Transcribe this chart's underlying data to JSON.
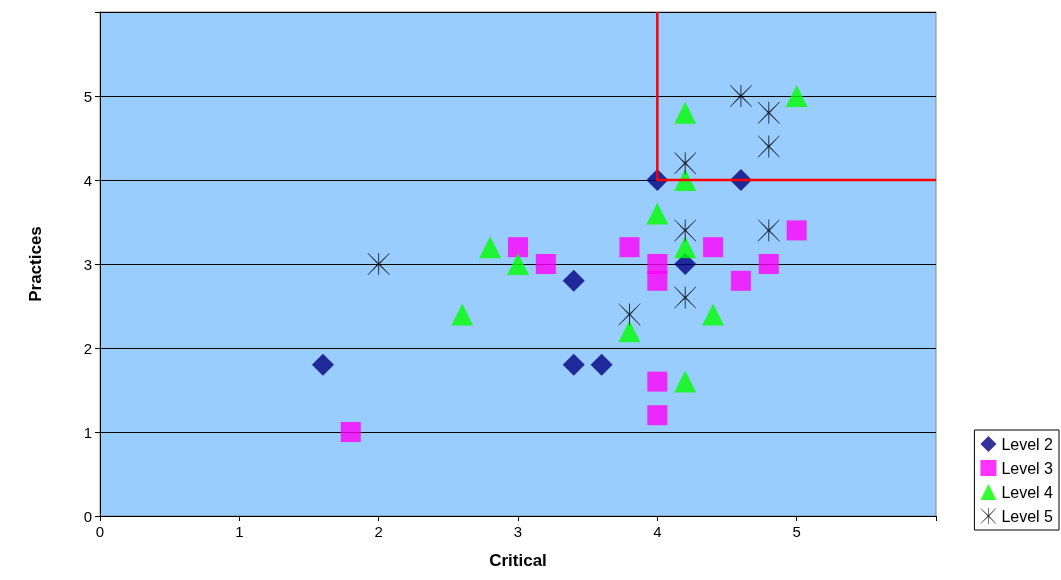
{
  "chart_data": {
    "type": "scatter",
    "xlabel": "Critical",
    "ylabel": "Practices",
    "xlim": [
      0,
      6
    ],
    "xticks": [
      0,
      1,
      2,
      3,
      4,
      5,
      {
        "value": 6,
        "label": null
      }
    ],
    "ylim": [
      0,
      6
    ],
    "yticks": [
      0,
      1,
      2,
      3,
      4,
      5,
      {
        "value": 6,
        "label": null
      }
    ],
    "grid": "y",
    "legend": "bottom right",
    "series": [
      {
        "name": "Level 2",
        "color": "#000080",
        "marker": "diamond",
        "x": [
          1.6,
          3.4,
          3.4,
          3.6,
          4,
          4.2,
          4.6
        ],
        "values": [
          1.8,
          2.8,
          1.8,
          1.8,
          4,
          3,
          4
        ]
      },
      {
        "name": "Level 3",
        "color": "#ff00ff",
        "marker": "square",
        "x": [
          1.8,
          3,
          3.2,
          3.8,
          4,
          4,
          4,
          4,
          4.4,
          4.6,
          4.8,
          5
        ],
        "values": [
          1,
          3.2,
          3,
          3.2,
          3,
          2.8,
          1.6,
          1.2,
          3.2,
          2.8,
          3,
          3.4
        ]
      },
      {
        "name": "Level 4",
        "color": "#00ff00",
        "marker": "triangle",
        "x": [
          2.6,
          2.8,
          3,
          3.8,
          4,
          4.2,
          4.2,
          4.2,
          4.2,
          4.4,
          5
        ],
        "values": [
          2.4,
          3.2,
          3,
          2.2,
          3.6,
          4.8,
          4,
          3.2,
          1.6,
          2.4,
          5
        ]
      },
      {
        "name": "Level 5",
        "color": "#000000",
        "marker": "cross",
        "x": [
          2,
          3.8,
          4.2,
          4.2,
          4.2,
          4.6,
          4.8,
          4.8,
          4.8
        ],
        "values": [
          3,
          2.4,
          4.2,
          3.4,
          2.6,
          5,
          4.8,
          4.4,
          3.4
        ]
      },
      {
        "type": "line",
        "color": "#ff0000",
        "marker": "none",
        "x": [
          4,
          4,
          6
        ],
        "values": [
          6,
          4,
          4
        ]
      }
    ]
  }
}
